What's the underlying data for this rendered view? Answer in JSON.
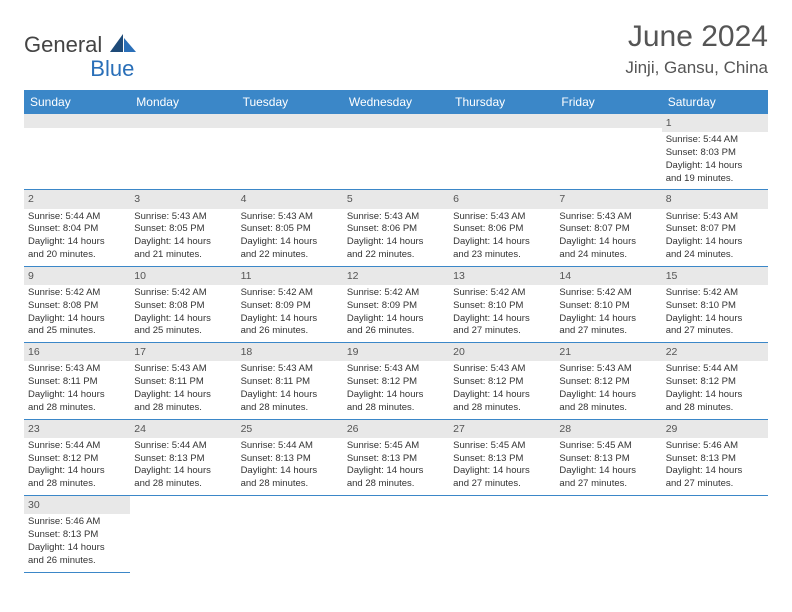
{
  "logo": {
    "text1": "General",
    "text2": "Blue"
  },
  "title": "June 2024",
  "location": "Jinji, Gansu, China",
  "theme": {
    "header_bg": "#3b87c8",
    "header_fg": "#ffffff",
    "daynum_bg": "#e8e8e8",
    "border": "#3b87c8",
    "logo_blue": "#2a6fb8",
    "logo_sail": "#2a6fb8"
  },
  "weekdays": [
    "Sunday",
    "Monday",
    "Tuesday",
    "Wednesday",
    "Thursday",
    "Friday",
    "Saturday"
  ],
  "weeks": [
    [
      null,
      null,
      null,
      null,
      null,
      null,
      {
        "n": "1",
        "sr": "Sunrise: 5:44 AM",
        "ss": "Sunset: 8:03 PM",
        "d1": "Daylight: 14 hours",
        "d2": "and 19 minutes."
      }
    ],
    [
      {
        "n": "2",
        "sr": "Sunrise: 5:44 AM",
        "ss": "Sunset: 8:04 PM",
        "d1": "Daylight: 14 hours",
        "d2": "and 20 minutes."
      },
      {
        "n": "3",
        "sr": "Sunrise: 5:43 AM",
        "ss": "Sunset: 8:05 PM",
        "d1": "Daylight: 14 hours",
        "d2": "and 21 minutes."
      },
      {
        "n": "4",
        "sr": "Sunrise: 5:43 AM",
        "ss": "Sunset: 8:05 PM",
        "d1": "Daylight: 14 hours",
        "d2": "and 22 minutes."
      },
      {
        "n": "5",
        "sr": "Sunrise: 5:43 AM",
        "ss": "Sunset: 8:06 PM",
        "d1": "Daylight: 14 hours",
        "d2": "and 22 minutes."
      },
      {
        "n": "6",
        "sr": "Sunrise: 5:43 AM",
        "ss": "Sunset: 8:06 PM",
        "d1": "Daylight: 14 hours",
        "d2": "and 23 minutes."
      },
      {
        "n": "7",
        "sr": "Sunrise: 5:43 AM",
        "ss": "Sunset: 8:07 PM",
        "d1": "Daylight: 14 hours",
        "d2": "and 24 minutes."
      },
      {
        "n": "8",
        "sr": "Sunrise: 5:43 AM",
        "ss": "Sunset: 8:07 PM",
        "d1": "Daylight: 14 hours",
        "d2": "and 24 minutes."
      }
    ],
    [
      {
        "n": "9",
        "sr": "Sunrise: 5:42 AM",
        "ss": "Sunset: 8:08 PM",
        "d1": "Daylight: 14 hours",
        "d2": "and 25 minutes."
      },
      {
        "n": "10",
        "sr": "Sunrise: 5:42 AM",
        "ss": "Sunset: 8:08 PM",
        "d1": "Daylight: 14 hours",
        "d2": "and 25 minutes."
      },
      {
        "n": "11",
        "sr": "Sunrise: 5:42 AM",
        "ss": "Sunset: 8:09 PM",
        "d1": "Daylight: 14 hours",
        "d2": "and 26 minutes."
      },
      {
        "n": "12",
        "sr": "Sunrise: 5:42 AM",
        "ss": "Sunset: 8:09 PM",
        "d1": "Daylight: 14 hours",
        "d2": "and 26 minutes."
      },
      {
        "n": "13",
        "sr": "Sunrise: 5:42 AM",
        "ss": "Sunset: 8:10 PM",
        "d1": "Daylight: 14 hours",
        "d2": "and 27 minutes."
      },
      {
        "n": "14",
        "sr": "Sunrise: 5:42 AM",
        "ss": "Sunset: 8:10 PM",
        "d1": "Daylight: 14 hours",
        "d2": "and 27 minutes."
      },
      {
        "n": "15",
        "sr": "Sunrise: 5:42 AM",
        "ss": "Sunset: 8:10 PM",
        "d1": "Daylight: 14 hours",
        "d2": "and 27 minutes."
      }
    ],
    [
      {
        "n": "16",
        "sr": "Sunrise: 5:43 AM",
        "ss": "Sunset: 8:11 PM",
        "d1": "Daylight: 14 hours",
        "d2": "and 28 minutes."
      },
      {
        "n": "17",
        "sr": "Sunrise: 5:43 AM",
        "ss": "Sunset: 8:11 PM",
        "d1": "Daylight: 14 hours",
        "d2": "and 28 minutes."
      },
      {
        "n": "18",
        "sr": "Sunrise: 5:43 AM",
        "ss": "Sunset: 8:11 PM",
        "d1": "Daylight: 14 hours",
        "d2": "and 28 minutes."
      },
      {
        "n": "19",
        "sr": "Sunrise: 5:43 AM",
        "ss": "Sunset: 8:12 PM",
        "d1": "Daylight: 14 hours",
        "d2": "and 28 minutes."
      },
      {
        "n": "20",
        "sr": "Sunrise: 5:43 AM",
        "ss": "Sunset: 8:12 PM",
        "d1": "Daylight: 14 hours",
        "d2": "and 28 minutes."
      },
      {
        "n": "21",
        "sr": "Sunrise: 5:43 AM",
        "ss": "Sunset: 8:12 PM",
        "d1": "Daylight: 14 hours",
        "d2": "and 28 minutes."
      },
      {
        "n": "22",
        "sr": "Sunrise: 5:44 AM",
        "ss": "Sunset: 8:12 PM",
        "d1": "Daylight: 14 hours",
        "d2": "and 28 minutes."
      }
    ],
    [
      {
        "n": "23",
        "sr": "Sunrise: 5:44 AM",
        "ss": "Sunset: 8:12 PM",
        "d1": "Daylight: 14 hours",
        "d2": "and 28 minutes."
      },
      {
        "n": "24",
        "sr": "Sunrise: 5:44 AM",
        "ss": "Sunset: 8:13 PM",
        "d1": "Daylight: 14 hours",
        "d2": "and 28 minutes."
      },
      {
        "n": "25",
        "sr": "Sunrise: 5:44 AM",
        "ss": "Sunset: 8:13 PM",
        "d1": "Daylight: 14 hours",
        "d2": "and 28 minutes."
      },
      {
        "n": "26",
        "sr": "Sunrise: 5:45 AM",
        "ss": "Sunset: 8:13 PM",
        "d1": "Daylight: 14 hours",
        "d2": "and 28 minutes."
      },
      {
        "n": "27",
        "sr": "Sunrise: 5:45 AM",
        "ss": "Sunset: 8:13 PM",
        "d1": "Daylight: 14 hours",
        "d2": "and 27 minutes."
      },
      {
        "n": "28",
        "sr": "Sunrise: 5:45 AM",
        "ss": "Sunset: 8:13 PM",
        "d1": "Daylight: 14 hours",
        "d2": "and 27 minutes."
      },
      {
        "n": "29",
        "sr": "Sunrise: 5:46 AM",
        "ss": "Sunset: 8:13 PM",
        "d1": "Daylight: 14 hours",
        "d2": "and 27 minutes."
      }
    ],
    [
      {
        "n": "30",
        "sr": "Sunrise: 5:46 AM",
        "ss": "Sunset: 8:13 PM",
        "d1": "Daylight: 14 hours",
        "d2": "and 26 minutes."
      },
      null,
      null,
      null,
      null,
      null,
      null
    ]
  ]
}
